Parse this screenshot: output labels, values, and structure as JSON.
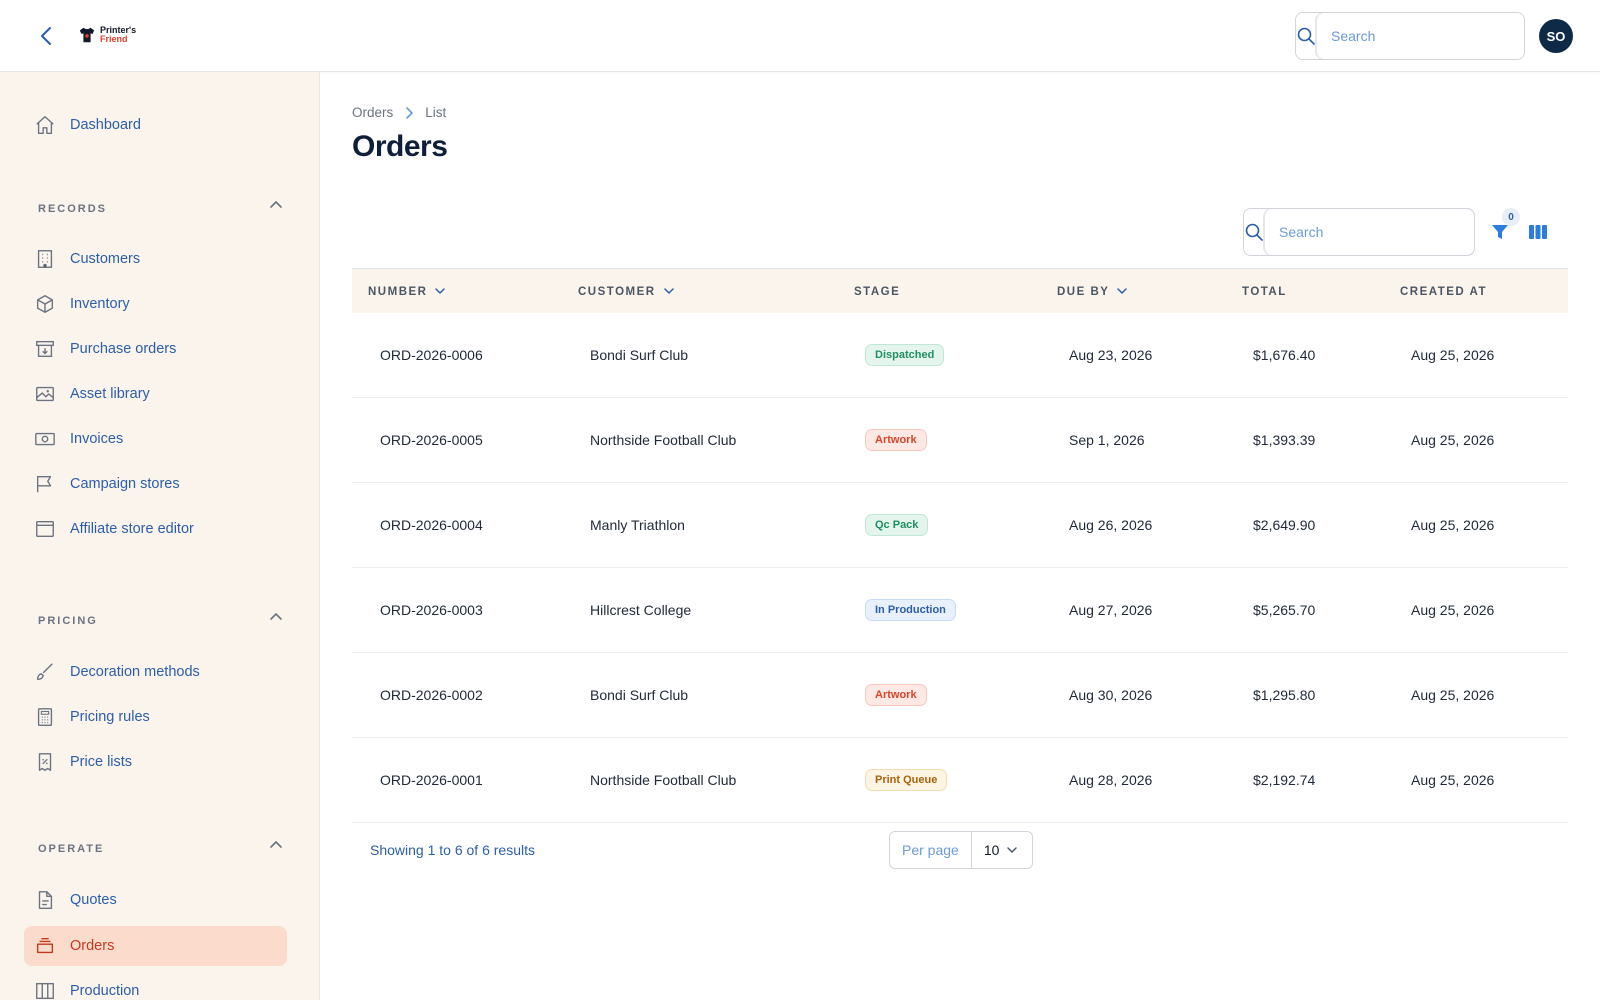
{
  "topbar": {
    "logo_line1": "Printer's",
    "logo_line2": "Friend",
    "search_placeholder": "Search",
    "avatar_initials": "SO"
  },
  "sidebar": {
    "dashboard": "Dashboard",
    "sections": {
      "records": "RECORDS",
      "pricing": "PRICING",
      "operate": "OPERATE"
    },
    "records_items": [
      {
        "label": "Customers",
        "icon": "building-icon"
      },
      {
        "label": "Inventory",
        "icon": "cube-icon"
      },
      {
        "label": "Purchase orders",
        "icon": "archive-box-icon"
      },
      {
        "label": "Asset library",
        "icon": "image-icon"
      },
      {
        "label": "Invoices",
        "icon": "banknote-icon"
      },
      {
        "label": "Campaign stores",
        "icon": "flag-icon"
      },
      {
        "label": "Affiliate store editor",
        "icon": "browser-window-icon"
      }
    ],
    "pricing_items": [
      {
        "label": "Decoration methods",
        "icon": "paintbrush-icon"
      },
      {
        "label": "Pricing rules",
        "icon": "calculator-icon"
      },
      {
        "label": "Price lists",
        "icon": "percent-document-icon"
      }
    ],
    "operate_items": [
      {
        "label": "Quotes",
        "icon": "document-text-icon"
      },
      {
        "label": "Orders",
        "icon": "inbox-stack-icon",
        "active": true
      },
      {
        "label": "Production",
        "icon": "view-columns-icon"
      }
    ]
  },
  "main": {
    "breadcrumb": [
      "Orders",
      "List"
    ],
    "title": "Orders",
    "table_search_placeholder": "Search",
    "filter_count": "0",
    "columns": [
      "NUMBER",
      "CUSTOMER",
      "STAGE",
      "DUE BY",
      "TOTAL",
      "CREATED AT"
    ],
    "rows": [
      {
        "number": "ORD-2026-0006",
        "customer": "Bondi Surf Club",
        "stage": "Dispatched",
        "due_by": "Aug 23, 2026",
        "total": "$1,676.40",
        "created_at": "Aug 25, 2026"
      },
      {
        "number": "ORD-2026-0005",
        "customer": "Northside Football Club",
        "stage": "Artwork",
        "due_by": "Sep 1, 2026",
        "total": "$1,393.39",
        "created_at": "Aug 25, 2026"
      },
      {
        "number": "ORD-2026-0004",
        "customer": "Manly Triathlon",
        "stage": "Qc Pack",
        "due_by": "Aug 26, 2026",
        "total": "$2,649.90",
        "created_at": "Aug 25, 2026"
      },
      {
        "number": "ORD-2026-0003",
        "customer": "Hillcrest College",
        "stage": "In Production",
        "due_by": "Aug 27, 2026",
        "total": "$5,265.70",
        "created_at": "Aug 25, 2026"
      },
      {
        "number": "ORD-2026-0002",
        "customer": "Bondi Surf Club",
        "stage": "Artwork",
        "due_by": "Aug 30, 2026",
        "total": "$1,295.80",
        "created_at": "Aug 25, 2026"
      },
      {
        "number": "ORD-2026-0001",
        "customer": "Northside Football Club",
        "stage": "Print Queue",
        "due_by": "Aug 28, 2026",
        "total": "$2,192.74",
        "created_at": "Aug 25, 2026"
      }
    ],
    "results_text": "Showing 1 to 6 of 6 results",
    "per_page_label": "Per page",
    "per_page_value": "10"
  },
  "colors": {
    "accent_blue": "#2c5ea8",
    "brand_red": "#e0412d",
    "sidebar_bg": "#fbf4ed",
    "active_bg": "#fbdccc"
  }
}
